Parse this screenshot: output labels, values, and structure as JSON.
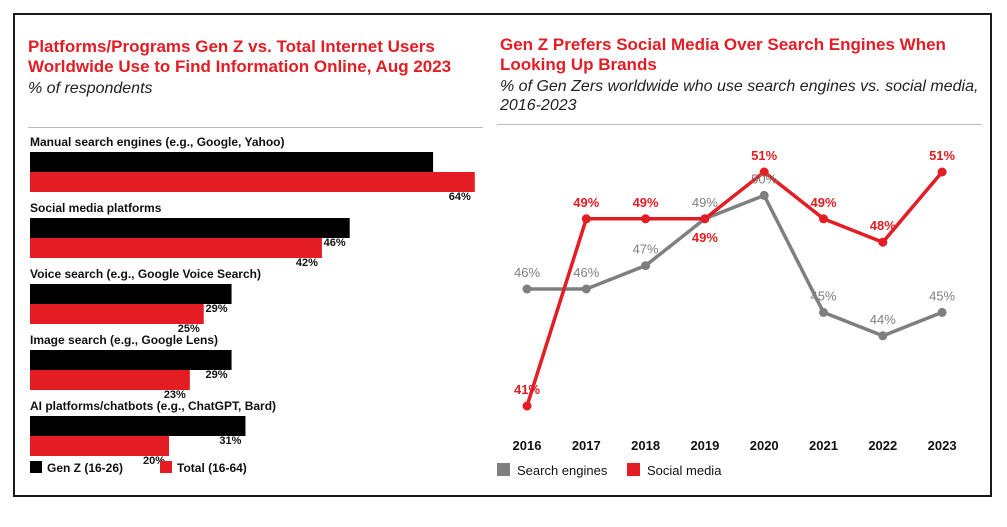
{
  "chart_data": [
    {
      "type": "bar",
      "title": "Platforms/Programs Gen Z vs. Total Internet Users Worldwide Use to Find Information Online, Aug 2023",
      "subtitle": "% of respondents",
      "categories": [
        "Manual search engines (e.g., Google, Yahoo)",
        "Social media platforms",
        "Voice search (e.g., Google Voice Search)",
        "Image search (e.g., Google Lens)",
        "AI platforms/chatbots (e.g., ChatGPT, Bard)"
      ],
      "series": [
        {
          "name": "Gen Z (16-26)",
          "values": [
            58,
            46,
            29,
            29,
            31
          ],
          "color": "#000000"
        },
        {
          "name": "Total (16-64)",
          "values": [
            64,
            42,
            25,
            23,
            20
          ],
          "color": "#e31d23"
        }
      ],
      "value_suffix": "%",
      "legend": "bottom-left",
      "grid": false
    },
    {
      "type": "line",
      "title": "Gen Z Prefers Social Media Over Search Engines When Looking Up Brands",
      "subtitle": "% of Gen Zers worldwide who use search engines vs. social media, 2016-2023",
      "x": [
        "2016",
        "2017",
        "2018",
        "2019",
        "2020",
        "2021",
        "2022",
        "2023"
      ],
      "series": [
        {
          "name": "Search engines",
          "values": [
            46,
            46,
            47,
            49,
            50,
            45,
            44,
            45
          ],
          "color": "#7f7f7f"
        },
        {
          "name": "Social media",
          "values": [
            41,
            49,
            49,
            49,
            51,
            49,
            48,
            51
          ],
          "color": "#e31d23"
        }
      ],
      "value_suffix": "%",
      "legend": "bottom-left",
      "grid": false
    }
  ]
}
